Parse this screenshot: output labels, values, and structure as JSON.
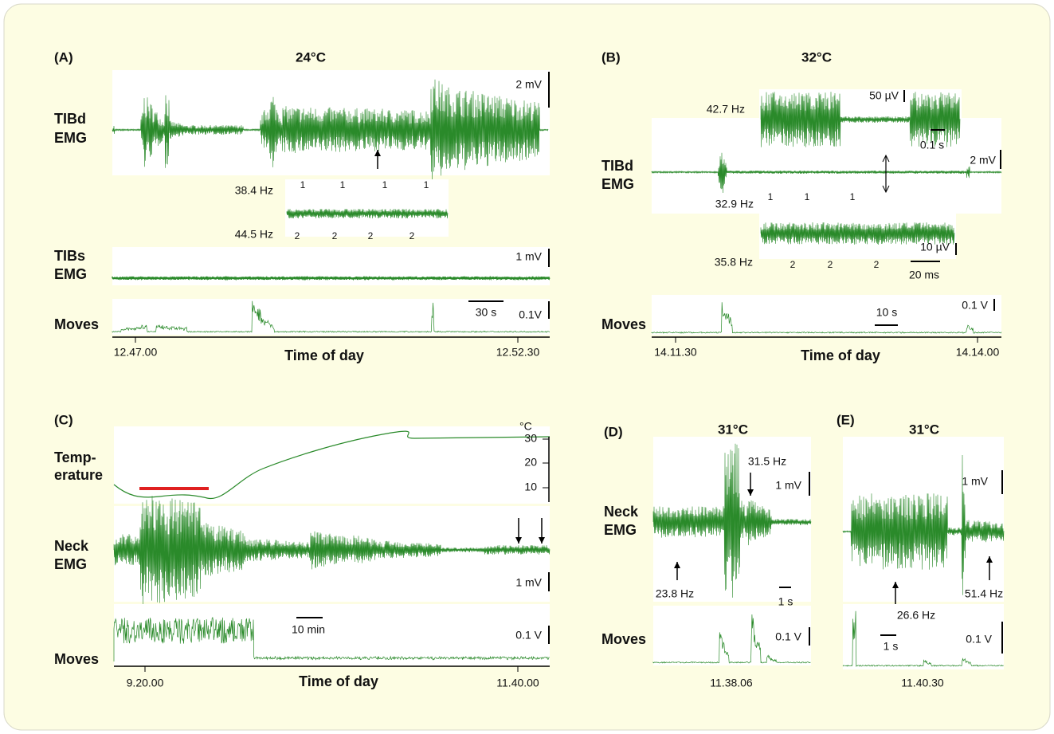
{
  "panel_a": {
    "label": "(A)",
    "title": "24°C",
    "tibd_label": [
      "TIBd",
      "EMG"
    ],
    "tibd_scale": "2 mV",
    "freq_top": "38.4 Hz",
    "freq_bottom": "44.5 Hz",
    "unit_marks_1": [
      "1",
      "1",
      "1",
      "1"
    ],
    "unit_marks_2": [
      "2",
      "2",
      "2",
      "2"
    ],
    "tibs_label": [
      "TIBs",
      "EMG"
    ],
    "tibs_scale": "1 mV",
    "time_scale": "30 s",
    "moves_label": "Moves",
    "moves_scale": "0.1V",
    "time_start": "12.47.00",
    "x_label": "Time of day",
    "time_end": "12.52.30"
  },
  "panel_b": {
    "label": "(B)",
    "title": "32°C",
    "tibd_label": [
      "TIBd",
      "EMG"
    ],
    "freq_inset": "42.7 Hz",
    "inset_scale": "50 µV",
    "inset_time_scale": "0.1 s",
    "tibd_scale": "2 mV",
    "freq_top": "32.9 Hz",
    "unit_marks_1": [
      "1",
      "1",
      "1"
    ],
    "unit_marks_2": [
      "2",
      "2",
      "2"
    ],
    "freq_bottom": "35.8 Hz",
    "inset2_scale": "10 µV",
    "inset2_time_scale": "20 ms",
    "moves_label": "Moves",
    "time_scale": "10 s",
    "moves_scale": "0.1 V",
    "time_start": "14.11.30",
    "x_label": "Time of day",
    "time_end": "14.14.00"
  },
  "panel_c": {
    "label": "(C)",
    "temp_label": [
      "Temp-",
      "erature"
    ],
    "temp_unit": "°C",
    "temp_ticks": [
      "30",
      "20",
      "10"
    ],
    "neck_label": [
      "Neck",
      "EMG"
    ],
    "neck_scale": "1 mV",
    "moves_label": "Moves",
    "time_scale": "10 min",
    "moves_scale": "0.1 V",
    "time_start": "9.20.00",
    "x_label": "Time of day",
    "time_end": "11.40.00"
  },
  "panel_d": {
    "label": "(D)",
    "title": "31°C",
    "neck_label": [
      "Neck",
      "EMG"
    ],
    "freq_right": "31.5 Hz",
    "neck_scale": "1 mV",
    "freq_left": "23.8 Hz",
    "time_scale": "1 s",
    "moves_label": "Moves",
    "moves_scale": "0.1 V",
    "time": "11.38.06"
  },
  "panel_e": {
    "label": "(E)",
    "title": "31°C",
    "neck_scale": "1 mV",
    "freq_left": "26.6 Hz",
    "freq_right": "51.4 Hz",
    "time_scale": "1 s",
    "moves_scale": "0.1 V",
    "time": "11.40.30"
  }
}
